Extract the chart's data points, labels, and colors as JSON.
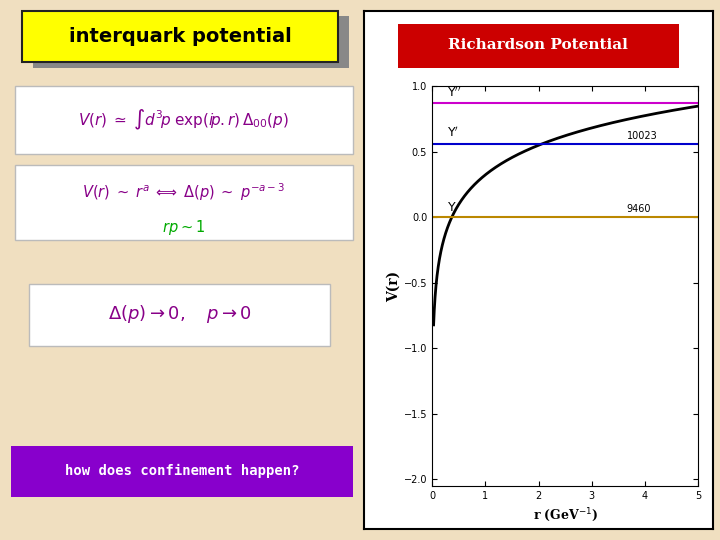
{
  "bg_color": "#f0dfc0",
  "title_text": "interquark potential",
  "title_bg": "#ffff00",
  "title_shadow": "#888888",
  "eq_color": "#880088",
  "rp_color": "#00aa00",
  "richardson_title": "Richardson Potential",
  "richardson_title_bg": "#cc0000",
  "richardson_title_color": "#ffffff",
  "plot_bg": "#ffffff",
  "xlabel": "r (GeV$^{-1}$)",
  "ylabel": "V(r)",
  "ylim": [
    -2.05,
    1.0
  ],
  "xlim": [
    0,
    5
  ],
  "upsilon_color": "#bb8800",
  "upsilon_y": 0.0,
  "upsilon_mass": "9460",
  "upsilon_prime_color": "#0000cc",
  "upsilon_prime_y": 0.56,
  "upsilon_prime_mass": "10023",
  "upsilon_dbl_color": "#cc00cc",
  "upsilon_dbl_y": 0.87,
  "curve_color": "#000000",
  "border_color": "#000000",
  "white_panel": "#ffffff"
}
